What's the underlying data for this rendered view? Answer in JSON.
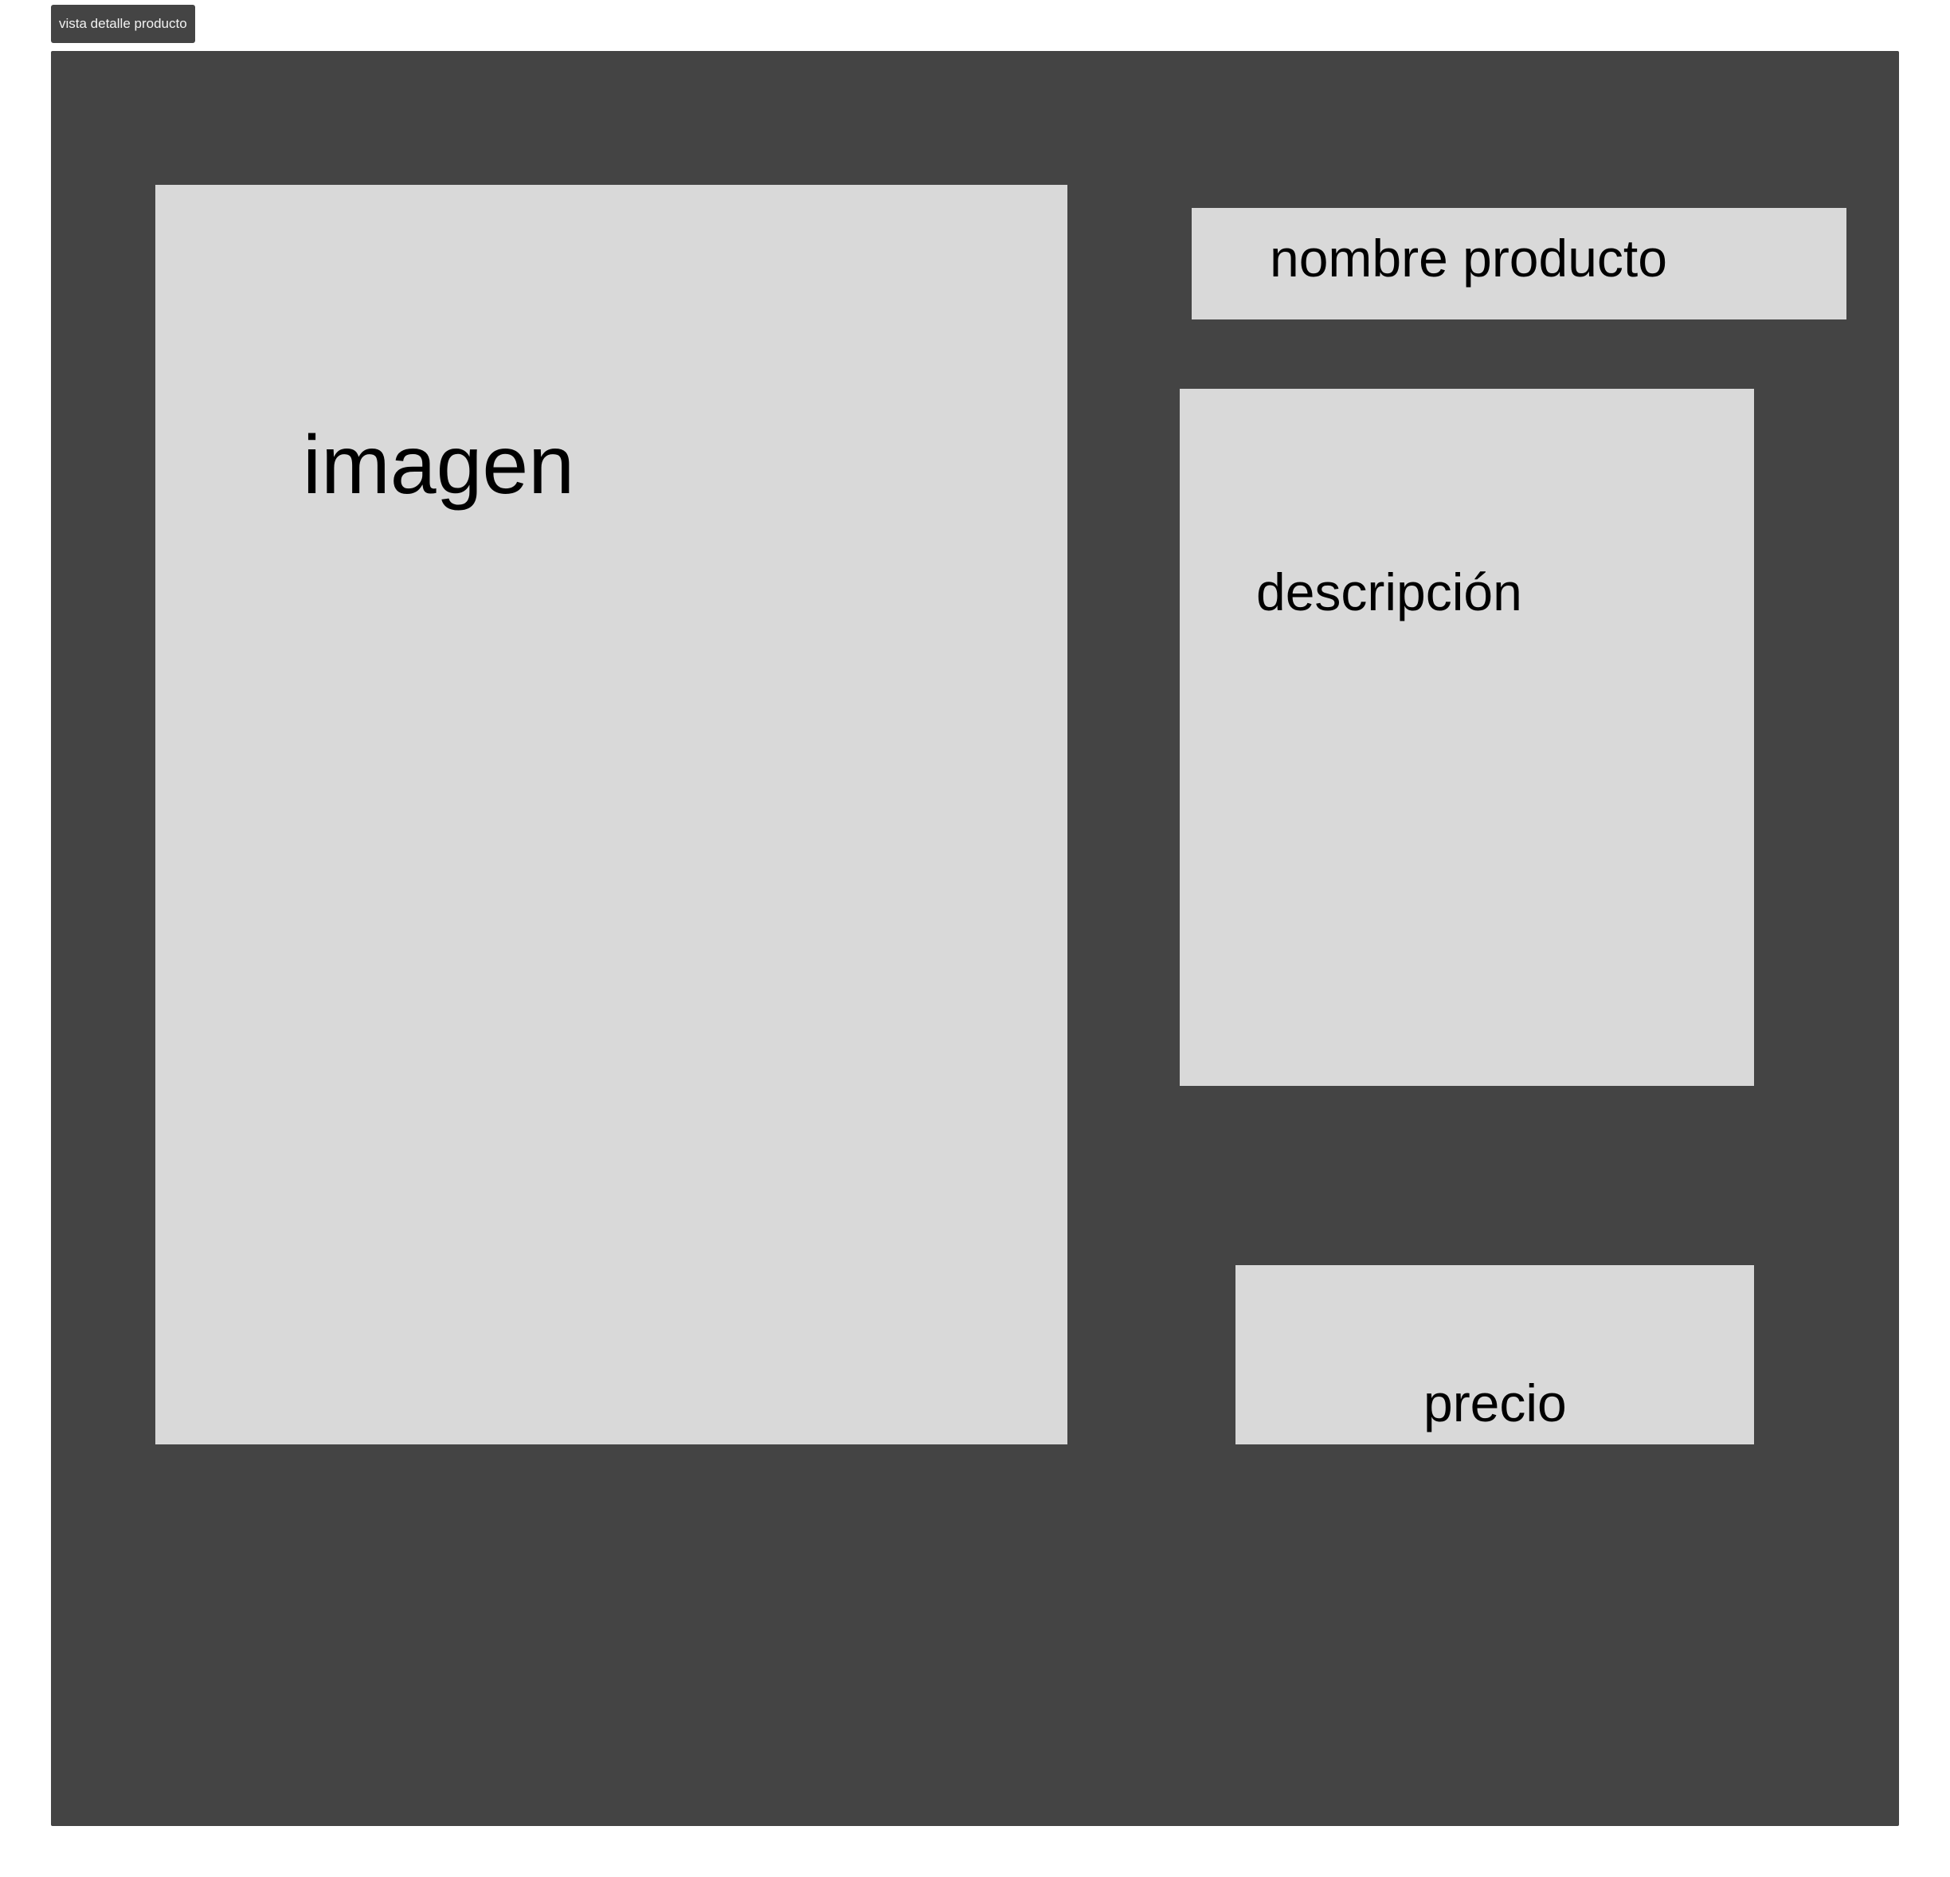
{
  "frame": {
    "label": "vista detalle producto"
  },
  "blocks": {
    "image": "imagen",
    "name": "nombre producto",
    "description": "descripción",
    "price": "precio"
  },
  "colors": {
    "frame_background": "#444444",
    "block_background": "#d9d9d9",
    "text": "#000000"
  }
}
